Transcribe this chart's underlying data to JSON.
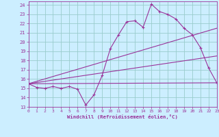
{
  "xlabel": "Windchill (Refroidissement éolien,°C)",
  "bg_color": "#cceeff",
  "line_color": "#993399",
  "grid_color": "#99cccc",
  "x_ticks": [
    0,
    1,
    2,
    3,
    4,
    5,
    6,
    7,
    8,
    9,
    10,
    11,
    12,
    13,
    14,
    15,
    16,
    17,
    18,
    19,
    20,
    21,
    22,
    23
  ],
  "y_ticks": [
    13,
    14,
    15,
    16,
    17,
    18,
    19,
    20,
    21,
    22,
    23,
    24
  ],
  "line1_x": [
    0,
    1,
    2,
    3,
    4,
    5,
    6,
    7,
    8,
    9,
    10,
    11,
    12,
    13,
    14,
    15,
    16,
    17,
    18,
    19,
    20,
    21,
    22,
    23
  ],
  "line1_y": [
    15.5,
    15.1,
    15.0,
    15.2,
    15.0,
    15.2,
    14.9,
    13.2,
    14.3,
    16.4,
    19.3,
    20.8,
    22.2,
    22.3,
    21.6,
    24.1,
    23.3,
    23.0,
    22.5,
    21.5,
    20.8,
    19.4,
    17.2,
    15.6
  ],
  "line2_x": [
    0,
    23
  ],
  "line2_y": [
    15.5,
    15.6
  ],
  "line3_x": [
    0,
    23
  ],
  "line3_y": [
    15.5,
    18.5
  ],
  "line4_x": [
    0,
    23
  ],
  "line4_y": [
    15.5,
    21.5
  ],
  "xlim": [
    0,
    23
  ],
  "ylim": [
    13,
    24.4
  ]
}
